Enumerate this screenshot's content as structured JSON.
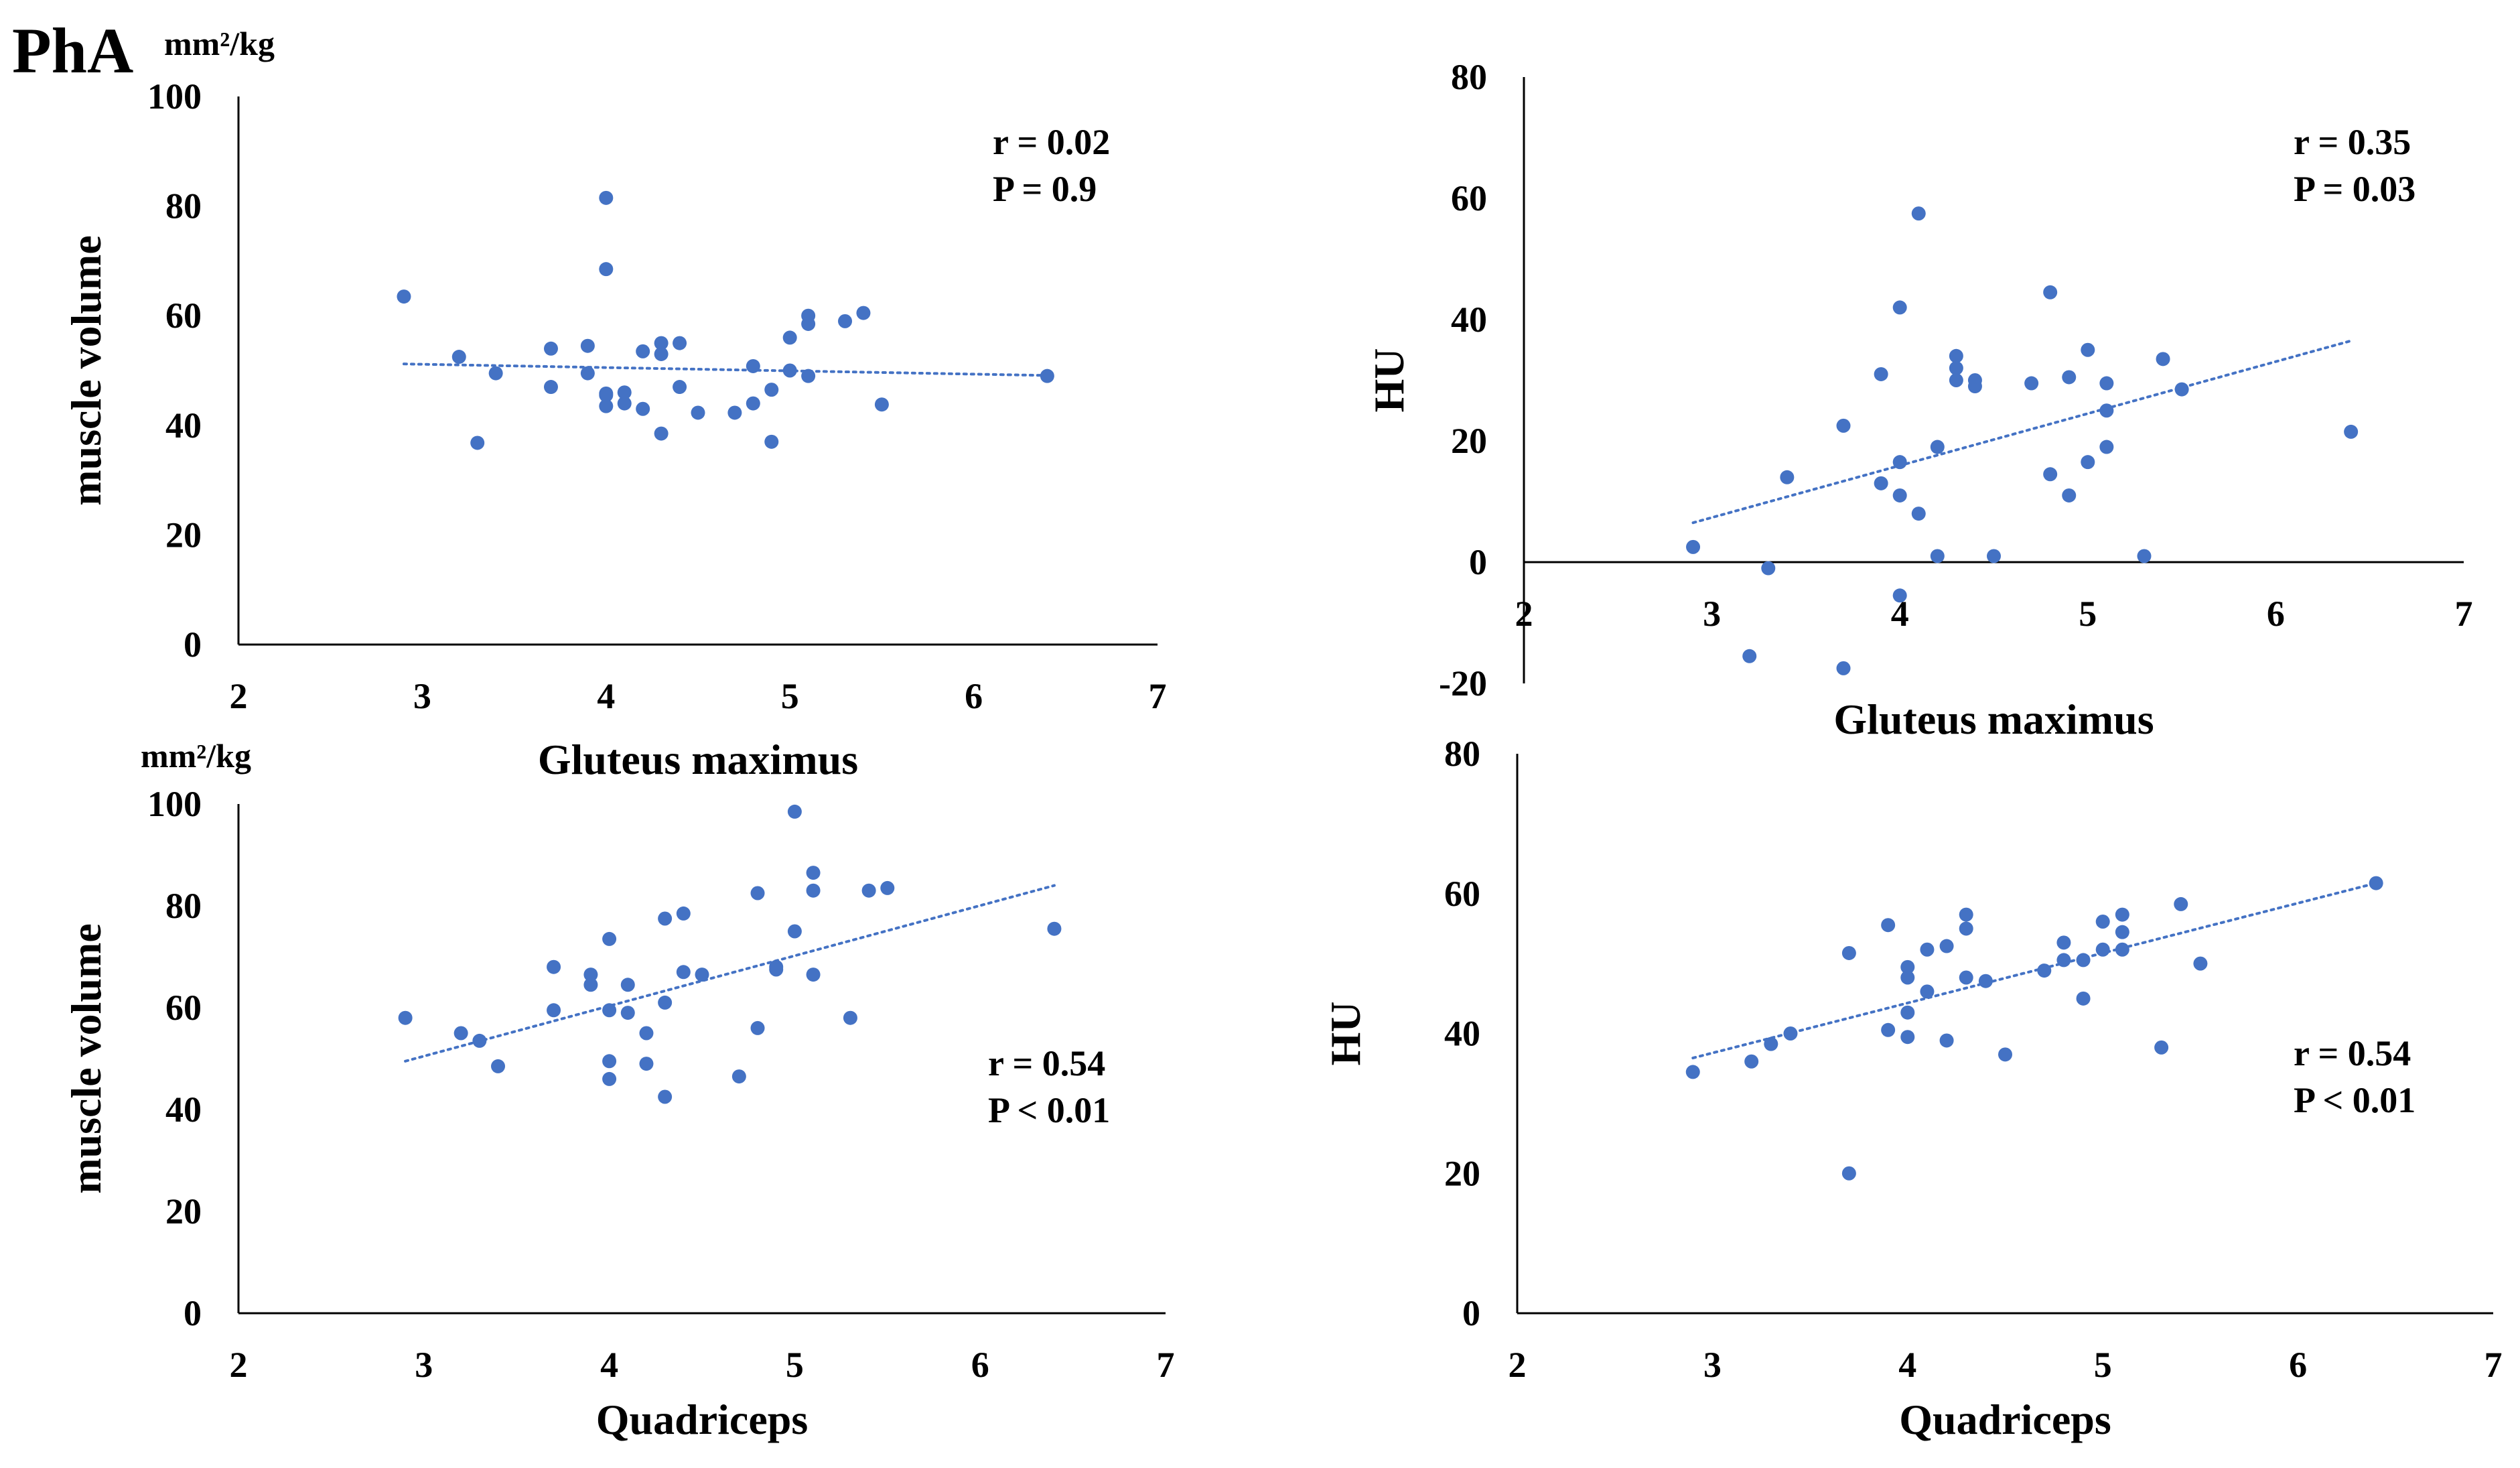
{
  "figure": {
    "panel_label": "PhA"
  },
  "colors": {
    "marker": "#4472C4",
    "trend": "#4472C4",
    "axis": "#000000"
  },
  "chart_data": [
    {
      "id": "gm-volume",
      "type": "scatter",
      "title": "",
      "xlabel": "Gluteus maximus",
      "ylabel": "muscle volume",
      "yunit": "mm²/kg",
      "xlim": [
        2,
        7
      ],
      "ylim": [
        0,
        100
      ],
      "xticks": [
        2,
        3,
        4,
        5,
        6,
        7
      ],
      "yticks": [
        0,
        20,
        40,
        60,
        80,
        100
      ],
      "annotation": [
        "r = 0.02",
        "P = 0.9"
      ],
      "trend": {
        "x": [
          2.9,
          6.4
        ],
        "y": [
          51.2,
          49.1
        ]
      },
      "x": [
        2.9,
        3.2,
        3.3,
        3.4,
        3.7,
        3.7,
        3.9,
        3.9,
        4.0,
        4.0,
        4.0,
        4.0,
        4.0,
        4.1,
        4.1,
        4.2,
        4.2,
        4.3,
        4.3,
        4.3,
        4.4,
        4.4,
        4.5,
        4.7,
        4.8,
        4.8,
        4.9,
        4.9,
        5.0,
        5.0,
        5.1,
        5.1,
        5.1,
        5.3,
        5.4,
        5.5,
        6.4
      ],
      "y": [
        63.5,
        52.5,
        36.8,
        49.5,
        54.0,
        47.0,
        54.5,
        49.5,
        81.5,
        68.5,
        45.5,
        43.5,
        45.8,
        46.0,
        44.0,
        53.5,
        43.0,
        55.0,
        53.0,
        38.5,
        55.0,
        47.0,
        42.3,
        42.3,
        44.0,
        50.8,
        46.5,
        37.0,
        56.0,
        50.0,
        60.0,
        58.5,
        49.0,
        59.0,
        60.5,
        43.8,
        49.0
      ]
    },
    {
      "id": "gm-hu",
      "type": "scatter",
      "title": "",
      "xlabel": "Gluteus maximus",
      "ylabel": "HU",
      "xlim": [
        2,
        7
      ],
      "ylim": [
        -20,
        80
      ],
      "xticks": [
        2,
        3,
        4,
        5,
        6,
        7
      ],
      "yticks": [
        -20,
        0,
        20,
        40,
        60,
        80
      ],
      "annotation": [
        "r = 0.35",
        "P = 0.03"
      ],
      "trend": {
        "x": [
          2.9,
          6.4
        ],
        "y": [
          6.5,
          36.5
        ]
      },
      "x": [
        2.9,
        3.2,
        3.3,
        3.4,
        3.7,
        3.7,
        3.9,
        3.9,
        4.0,
        4.0,
        4.0,
        4.0,
        4.1,
        4.1,
        4.2,
        4.2,
        4.3,
        4.3,
        4.3,
        4.4,
        4.4,
        4.5,
        4.7,
        4.8,
        4.8,
        4.9,
        4.9,
        5.0,
        5.0,
        5.1,
        5.1,
        5.1,
        5.3,
        5.4,
        5.5,
        6.4
      ],
      "y": [
        2.5,
        -15.5,
        -1.0,
        14.0,
        22.5,
        -17.5,
        31.0,
        13.0,
        42.0,
        16.5,
        11.0,
        -5.5,
        57.5,
        8.0,
        19.0,
        1.0,
        34.0,
        32.0,
        30.0,
        30.0,
        29.0,
        1.0,
        29.5,
        44.5,
        14.5,
        30.5,
        11.0,
        35.0,
        16.5,
        29.5,
        25.0,
        19.0,
        1.0,
        33.5,
        28.5,
        21.5
      ]
    },
    {
      "id": "q-volume",
      "type": "scatter",
      "title": "",
      "xlabel": "Quadriceps",
      "ylabel": "muscle volume",
      "yunit": "mm²/kg",
      "xlim": [
        2,
        7
      ],
      "ylim": [
        0,
        100
      ],
      "xticks": [
        2,
        3,
        4,
        5,
        6,
        7
      ],
      "yticks": [
        0,
        20,
        40,
        60,
        80,
        100
      ],
      "annotation": [
        "r = 0.54",
        "P < 0.01"
      ],
      "trend": {
        "x": [
          2.9,
          6.4
        ],
        "y": [
          49.5,
          84.0
        ]
      },
      "x": [
        2.9,
        3.2,
        3.3,
        3.4,
        3.7,
        3.7,
        3.9,
        3.9,
        4.0,
        4.0,
        4.0,
        4.0,
        4.1,
        4.1,
        4.2,
        4.2,
        4.3,
        4.3,
        4.3,
        4.4,
        4.4,
        4.5,
        4.7,
        4.8,
        4.8,
        4.9,
        4.9,
        5.0,
        5.0,
        5.1,
        5.1,
        5.1,
        5.3,
        5.4,
        5.5,
        6.4
      ],
      "y": [
        58.0,
        55.0,
        53.5,
        48.5,
        68.0,
        59.5,
        66.5,
        64.5,
        73.5,
        59.5,
        49.5,
        46.0,
        64.5,
        59.0,
        55.0,
        49.0,
        77.5,
        61.0,
        42.5,
        78.5,
        67.0,
        66.5,
        46.5,
        82.5,
        56.0,
        67.5,
        68.0,
        98.5,
        75.0,
        86.5,
        83.0,
        66.5,
        58.0,
        83.0,
        83.5,
        75.5
      ]
    },
    {
      "id": "q-hu",
      "type": "scatter",
      "title": "",
      "xlabel": "Quadriceps",
      "ylabel": "HU",
      "xlim": [
        2,
        7
      ],
      "ylim": [
        0,
        80
      ],
      "xticks": [
        2,
        3,
        4,
        5,
        6,
        7
      ],
      "yticks": [
        0,
        20,
        40,
        60,
        80
      ],
      "annotation": [
        "r = 0.54",
        "P < 0.01"
      ],
      "trend": {
        "x": [
          2.9,
          6.4
        ],
        "y": [
          36.5,
          61.5
        ]
      },
      "x": [
        2.9,
        3.2,
        3.3,
        3.4,
        3.7,
        3.7,
        3.9,
        3.9,
        4.0,
        4.0,
        4.0,
        4.0,
        4.1,
        4.1,
        4.2,
        4.2,
        4.3,
        4.3,
        4.3,
        4.4,
        4.5,
        4.7,
        4.8,
        4.8,
        4.9,
        4.9,
        5.0,
        5.0,
        5.1,
        5.1,
        5.1,
        5.3,
        5.4,
        5.5,
        6.4
      ],
      "y": [
        34.5,
        36.0,
        38.5,
        40.0,
        51.5,
        20.0,
        55.5,
        40.5,
        49.5,
        48.0,
        43.0,
        39.5,
        52.0,
        46.0,
        52.5,
        39.0,
        57.0,
        55.0,
        48.0,
        47.5,
        37.0,
        49.0,
        53.0,
        50.5,
        50.5,
        45.0,
        56.0,
        52.0,
        57.0,
        54.5,
        52.0,
        38.0,
        58.5,
        50.0,
        61.5
      ]
    }
  ]
}
